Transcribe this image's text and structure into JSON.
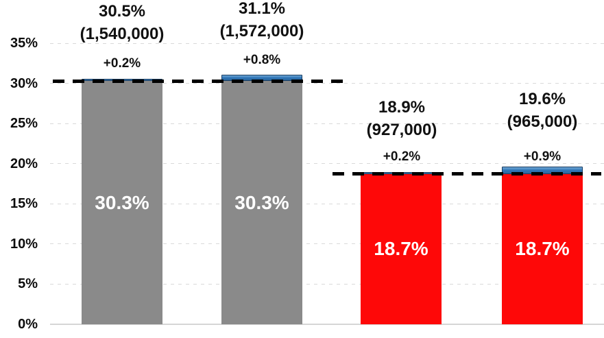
{
  "chart_data": {
    "type": "bar",
    "stacked": true,
    "title": "",
    "xlabel": "",
    "ylabel": "",
    "ylim": [
      0,
      35
    ],
    "grid": "horizontal-dashed",
    "legend": "none",
    "yticks": [
      {
        "label": "0%",
        "value": 0
      },
      {
        "label": "5%",
        "value": 5
      },
      {
        "label": "10%",
        "value": 10
      },
      {
        "label": "15%",
        "value": 15
      },
      {
        "label": "20%",
        "value": 20
      },
      {
        "label": "25%",
        "value": 25
      },
      {
        "label": "30%",
        "value": 30
      },
      {
        "label": "35%",
        "value": 35
      }
    ],
    "bars": [
      {
        "base_value": 30.3,
        "base_label": "30.3%",
        "delta_value": 0.2,
        "delta_label": "+0.2%",
        "total_value": 30.5,
        "total_label": "30.5%",
        "count_label": "(1,540,000)",
        "base_color": "#8a8a8a",
        "delta_color": "#2e74b5"
      },
      {
        "base_value": 30.3,
        "base_label": "30.3%",
        "delta_value": 0.8,
        "delta_label": "+0.8%",
        "total_value": 31.1,
        "total_label": "31.1%",
        "count_label": "(1,572,000)",
        "base_color": "#8a8a8a",
        "delta_color": "#2e74b5"
      },
      {
        "base_value": 18.7,
        "base_label": "18.7%",
        "delta_value": 0.2,
        "delta_label": "+0.2%",
        "total_value": 18.9,
        "total_label": "18.9%",
        "count_label": "(927,000)",
        "base_color": "#fe0808",
        "delta_color": "#2e74b5"
      },
      {
        "base_value": 18.7,
        "base_label": "18.7%",
        "delta_value": 0.9,
        "delta_label": "+0.9%",
        "total_value": 19.6,
        "total_label": "19.6%",
        "count_label": "(965,000)",
        "base_color": "#fe0808",
        "delta_color": "#2e74b5"
      }
    ],
    "reference_lines": [
      {
        "value": 30.3,
        "style": "dashed",
        "color": "#000000",
        "spans_bars": [
          1,
          2
        ]
      },
      {
        "value": 18.7,
        "style": "dashed",
        "color": "#000000",
        "spans_bars": [
          3,
          4
        ]
      }
    ],
    "colors": {
      "gray_bar": "#8a8a8a",
      "red_bar": "#fe0808",
      "blue_delta": "#2e74b5",
      "gridline": "#d9d9d9",
      "reference_line": "#000000",
      "bar_label_text": "#ffffff",
      "callout_text": "#111111"
    }
  }
}
